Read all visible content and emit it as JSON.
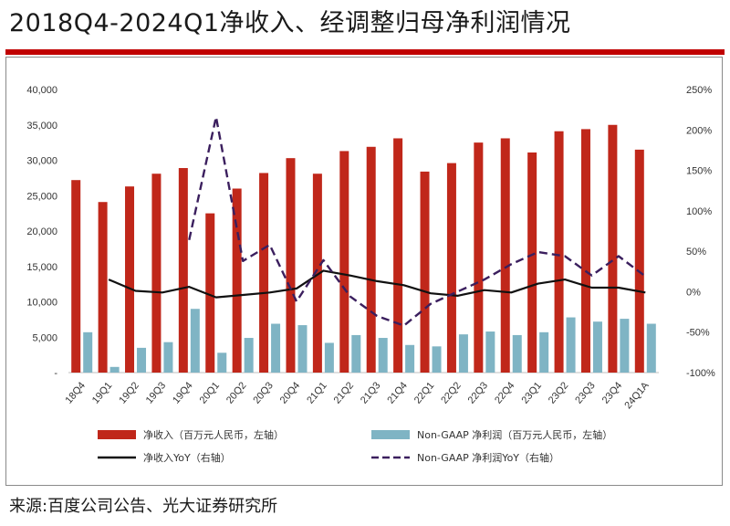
{
  "title": "2018Q4-2024Q1净收入、经调整归母净利润情况",
  "source": "来源:百度公司公告、光大证券研究所",
  "colors": {
    "revenue_bar": "#c0271a",
    "profit_bar": "#7fb4c4",
    "revenue_yoy_line": "#111111",
    "profit_yoy_line": "#3b1f5e",
    "title_rule": "#c00000"
  },
  "chart_data": {
    "type": "bar",
    "categories": [
      "18Q4",
      "19Q1",
      "19Q2",
      "19Q3",
      "19Q4",
      "20Q1",
      "20Q2",
      "20Q3",
      "20Q4",
      "21Q1",
      "21Q2",
      "21Q3",
      "21Q4",
      "22Q1",
      "22Q2",
      "22Q3",
      "22Q4",
      "23Q1",
      "23Q2",
      "23Q3",
      "23Q4",
      "24Q1A"
    ],
    "series": [
      {
        "name": "净收入（百万元人民币，左轴）",
        "kind": "bar",
        "axis": "left",
        "values": [
          27200,
          24100,
          26300,
          28100,
          28900,
          22500,
          26000,
          28200,
          30300,
          28100,
          31300,
          31900,
          33100,
          28400,
          29600,
          32500,
          33100,
          31100,
          34100,
          34400,
          35000,
          31500
        ]
      },
      {
        "name": "Non-GAAP 净利润（百万元人民币，左轴）",
        "kind": "bar",
        "axis": "left",
        "values": [
          5700,
          800,
          3500,
          4300,
          9000,
          2800,
          4900,
          6900,
          6700,
          4200,
          5300,
          4900,
          3900,
          3700,
          5400,
          5800,
          5300,
          5700,
          7800,
          7200,
          7600,
          6900
        ]
      },
      {
        "name": "净收入YoY（右轴）",
        "kind": "line",
        "axis": "right",
        "dash": false,
        "values": [
          null,
          15,
          1,
          -1,
          6,
          -7,
          -4,
          -1,
          4,
          26,
          20,
          13,
          8,
          -2,
          -5,
          2,
          -1,
          10,
          15,
          5,
          5,
          -1
        ]
      },
      {
        "name": "Non-GAAP 净利润YoY（右轴）",
        "kind": "line",
        "axis": "right",
        "dash": true,
        "values": [
          null,
          null,
          null,
          null,
          64,
          216,
          38,
          58,
          -12,
          39,
          -6,
          -30,
          -42,
          -15,
          0,
          15,
          34,
          49,
          44,
          20,
          44,
          19
        ]
      }
    ],
    "left_axis": {
      "min": 0,
      "max": 40000,
      "ticks": [
        "-",
        "5,000",
        "10,000",
        "15,000",
        "20,000",
        "25,000",
        "30,000",
        "35,000",
        "40,000"
      ]
    },
    "right_axis": {
      "min": -100,
      "max": 250,
      "ticks": [
        "-100%",
        "-50%",
        "0%",
        "50%",
        "100%",
        "150%",
        "200%",
        "250%"
      ]
    },
    "legend_position": "bottom",
    "grid": false
  }
}
